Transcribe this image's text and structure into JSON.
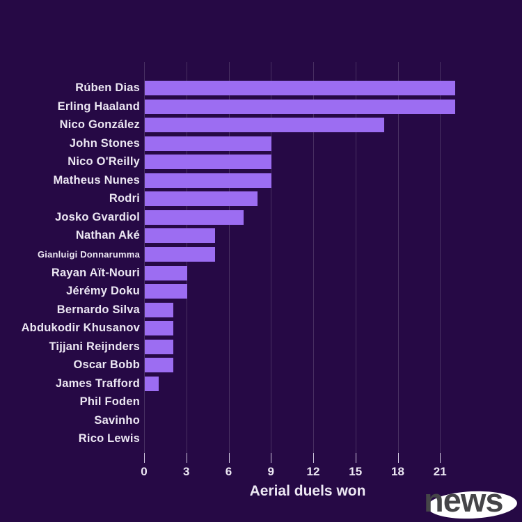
{
  "chart_data": {
    "type": "bar",
    "orientation": "horizontal",
    "title": "",
    "xlabel": "Aerial duels won",
    "categories": [
      "Rúben Dias",
      "Erling Haaland",
      "Nico González",
      "John Stones",
      "Nico O'Reilly",
      "Matheus Nunes",
      "Rodri",
      "Josko Gvardiol",
      "Nathan Aké",
      "Gianluigi Donnarumma",
      "Rayan Aït-Nouri",
      "Jérémy Doku",
      "Bernardo Silva",
      "Abdukodir Khusanov",
      "Tijjani Reijnders",
      "Oscar Bobb",
      "James Trafford",
      "Phil Foden",
      "Savinho",
      "Rico Lewis"
    ],
    "values": [
      22,
      22,
      17,
      9,
      9,
      9,
      8,
      7,
      5,
      5,
      3,
      3,
      2,
      2,
      2,
      2,
      1,
      0,
      0,
      0
    ],
    "xticks": [
      0,
      3,
      6,
      9,
      12,
      15,
      18,
      21
    ],
    "xlim": [
      0,
      23.2
    ],
    "grid": "vertical",
    "legend": "none",
    "colors": {
      "background": "#260945",
      "bar": "#9c6df2",
      "gridline": "rgba(255,255,255,0.16)",
      "text": "#ece7f3",
      "tickmark": "#cfc7de"
    }
  },
  "logo": {
    "text": "news",
    "text_color": "#454548",
    "ellipse_color": "#ffffff"
  }
}
